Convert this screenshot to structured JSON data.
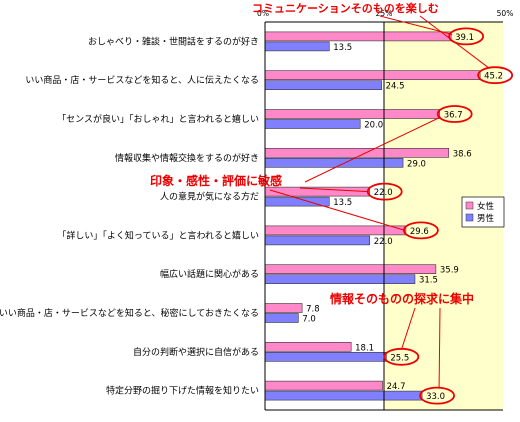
{
  "chart_data": {
    "type": "bar",
    "orientation": "horizontal",
    "categories": [
      "おしゃべり・雑談・世間話をするのが好き",
      "いい商品・店・サービスなどを知ると、人に伝えたくなる",
      "「センスが良い」「おしゃれ」と言われると嬉しい",
      "情報収集や情報交換をするのが好き",
      "人の意見が気になる方だ",
      "「詳しい」「よく知っている」と言われると嬉しい",
      "幅広い話題に関心がある",
      "いい商品・店・サービスなどを知ると、秘密にしておきたくなる",
      "自分の判断や選択に自信がある",
      "特定分野の掘り下げた情報を知りたい"
    ],
    "series": [
      {
        "name": "女性",
        "color": "#ff88c8",
        "values": [
          39.1,
          45.2,
          36.7,
          38.6,
          22.0,
          29.6,
          35.9,
          7.8,
          18.1,
          24.7
        ],
        "labels": [
          "39.1",
          "45.2",
          "36.7",
          "38.6",
          "22.0",
          "29.6",
          "35.9",
          "7.8",
          "18.1",
          "24.7"
        ]
      },
      {
        "name": "男性",
        "color": "#8080ff",
        "values": [
          13.5,
          24.5,
          20.0,
          29.0,
          13.5,
          22.0,
          31.5,
          7.0,
          25.5,
          33.0
        ],
        "labels": [
          "13.5",
          "24.5",
          "20.0",
          "29.0",
          "13.5",
          "22.0",
          "31.5",
          "7.0",
          "25.5",
          "33.0"
        ]
      }
    ],
    "xlim": [
      0,
      50
    ],
    "ticks": [
      {
        "value": 0,
        "label": "0%"
      },
      {
        "value": 25,
        "label": "25%"
      },
      {
        "value": 50,
        "label": "50%"
      }
    ],
    "legend_position": "right",
    "background_colors": {
      "left_half": "#ffffff",
      "right_half": "#ffffcc"
    },
    "annotations": [
      {
        "text": "コミュニケーションそのものを楽しむ",
        "color": "#ee0000"
      },
      {
        "text": "印象・感性・評価に敏感",
        "color": "#ee0000"
      },
      {
        "text": "情報そのものの探求に集中",
        "color": "#ee0000"
      }
    ],
    "highlighted_labels": [
      {
        "series": 0,
        "category": 0
      },
      {
        "series": 0,
        "category": 1
      },
      {
        "series": 0,
        "category": 2
      },
      {
        "series": 0,
        "category": 4
      },
      {
        "series": 0,
        "category": 5
      },
      {
        "series": 1,
        "category": 8
      },
      {
        "series": 1,
        "category": 9
      }
    ]
  }
}
